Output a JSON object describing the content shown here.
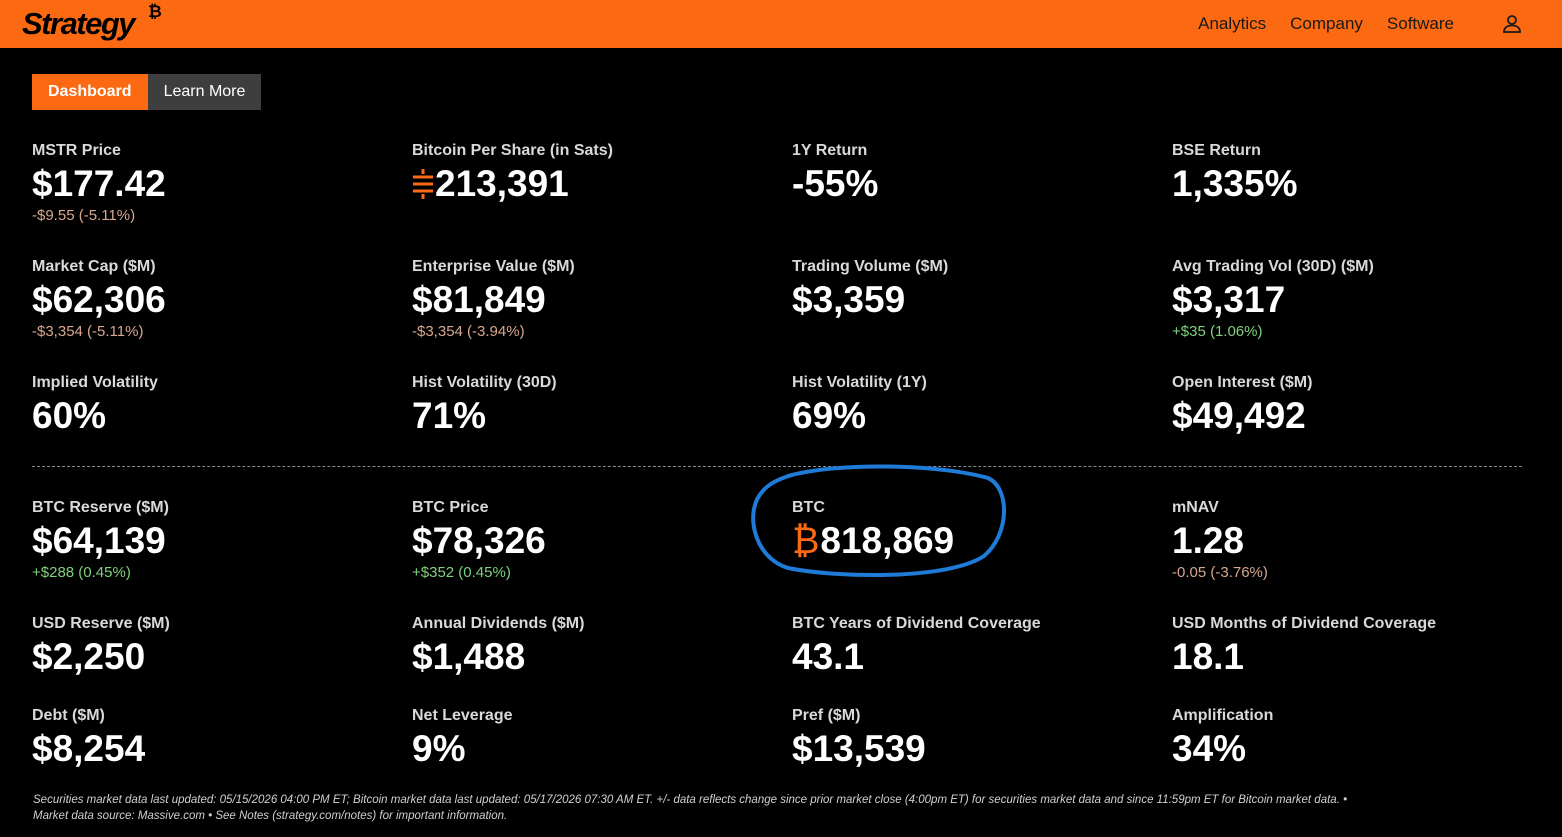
{
  "header": {
    "logo_text": "Strategy",
    "logo_symbol": "₿",
    "nav": [
      "Analytics",
      "Company",
      "Software"
    ],
    "user_icon": "user-icon",
    "bg_color": "#fb6a12"
  },
  "tabs": [
    {
      "label": "Dashboard",
      "active": true
    },
    {
      "label": "Learn More",
      "active": false
    }
  ],
  "metrics_top": [
    {
      "label": "MSTR Price",
      "value": "$177.42",
      "change": "-$9.55 (-5.11%)",
      "change_sign": "neg"
    },
    {
      "label": "Bitcoin Per Share (in Sats)",
      "value": "213,391",
      "prefix_icon": "sats-icon"
    },
    {
      "label": "1Y Return",
      "value": "-55%"
    },
    {
      "label": "BSE Return",
      "value": "1,335%"
    },
    {
      "label": "Market Cap ($M)",
      "value": "$62,306",
      "change": "-$3,354 (-5.11%)",
      "change_sign": "neg"
    },
    {
      "label": "Enterprise Value ($M)",
      "value": "$81,849",
      "change": "-$3,354 (-3.94%)",
      "change_sign": "neg"
    },
    {
      "label": "Trading Volume ($M)",
      "value": "$3,359"
    },
    {
      "label": "Avg Trading Vol (30D) ($M)",
      "value": "$3,317",
      "change": "+$35 (1.06%)",
      "change_sign": "pos"
    },
    {
      "label": "Implied Volatility",
      "value": "60%"
    },
    {
      "label": "Hist Volatility (30D)",
      "value": "71%"
    },
    {
      "label": "Hist Volatility (1Y)",
      "value": "69%"
    },
    {
      "label": "Open Interest ($M)",
      "value": "$49,492"
    }
  ],
  "metrics_bottom": [
    {
      "label": "BTC Reserve ($M)",
      "value": "$64,139",
      "change": "+$288 (0.45%)",
      "change_sign": "pos"
    },
    {
      "label": "BTC Price",
      "value": "$78,326",
      "change": "+$352 (0.45%)",
      "change_sign": "pos"
    },
    {
      "label": "BTC",
      "value": "818,869",
      "prefix": "₿"
    },
    {
      "label": "mNAV",
      "value": "1.28",
      "change": "-0.05 (-3.76%)",
      "change_sign": "neg"
    },
    {
      "label": "USD Reserve ($M)",
      "value": "$2,250"
    },
    {
      "label": "Annual Dividends ($M)",
      "value": "$1,488"
    },
    {
      "label": "BTC Years of Dividend Coverage",
      "value": "43.1"
    },
    {
      "label": "USD Months of Dividend Coverage",
      "value": "18.1"
    },
    {
      "label": "Debt ($M)",
      "value": "$8,254"
    },
    {
      "label": "Net Leverage",
      "value": "9%"
    },
    {
      "label": "Pref ($M)",
      "value": "$13,539"
    },
    {
      "label": "Amplification",
      "value": "34%"
    }
  ],
  "footnote": {
    "line1": "Securities market data last updated: 05/15/2026 04:00 PM ET; Bitcoin market data last updated: 05/17/2026 07:30 AM ET. +/- data reflects change since prior market close (4:00pm ET) for securities market data and since 11:59pm ET for Bitcoin market data.  •",
    "line2": "Market data source: Massive.com  •  See Notes (strategy.com/notes) for important information."
  },
  "colors": {
    "accent": "#fb6a12",
    "positive": "#7fd17f",
    "negative": "#d8a88e",
    "highlight_circle": "#1e7bd8"
  }
}
